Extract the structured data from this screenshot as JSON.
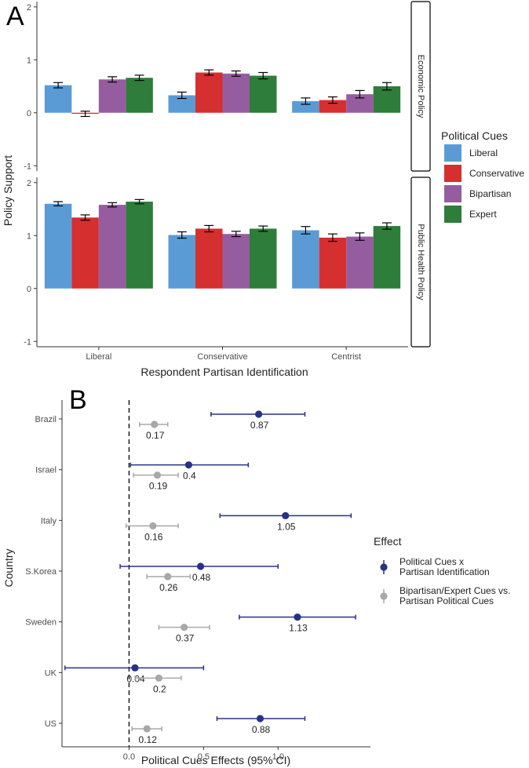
{
  "colors": {
    "liberal": "#5b9bd5",
    "conservative": "#d62f2f",
    "bipartisan": "#955d9f",
    "expert": "#2e7d3a",
    "interaction": "#27318a",
    "cue_contrast": "#a8a8a8"
  },
  "chart_data": [
    {
      "id": "A",
      "panel_label": "A",
      "type": "bar",
      "categories": [
        "Liberal",
        "Conservative",
        "Centrist"
      ],
      "xlabel": "Respondent Partisan Identification",
      "ylabel": "Policy Support",
      "ylim": [
        -1.1,
        2.1
      ],
      "yticks": [
        -1,
        0,
        1,
        2
      ],
      "legend": {
        "title": "Political Cues",
        "position": "right",
        "entries": [
          "Liberal",
          "Conservative",
          "Bipartisan",
          "Expert"
        ]
      },
      "facets": [
        {
          "label": "Economic Policy",
          "series": [
            {
              "name": "Liberal",
              "values": [
                0.52,
                0.33,
                0.22
              ],
              "errors": [
                0.05,
                0.06,
                0.06
              ]
            },
            {
              "name": "Conservative",
              "values": [
                -0.02,
                0.76,
                0.24
              ],
              "errors": [
                0.05,
                0.05,
                0.06
              ]
            },
            {
              "name": "Bipartisan",
              "values": [
                0.63,
                0.74,
                0.35
              ],
              "errors": [
                0.05,
                0.05,
                0.07
              ]
            },
            {
              "name": "Expert",
              "values": [
                0.66,
                0.7,
                0.5
              ],
              "errors": [
                0.05,
                0.06,
                0.07
              ]
            }
          ]
        },
        {
          "label": "Public Health Policy",
          "series": [
            {
              "name": "Liberal",
              "values": [
                1.6,
                1.01,
                1.1
              ],
              "errors": [
                0.04,
                0.06,
                0.07
              ]
            },
            {
              "name": "Conservative",
              "values": [
                1.34,
                1.13,
                0.96
              ],
              "errors": [
                0.05,
                0.06,
                0.07
              ]
            },
            {
              "name": "Bipartisan",
              "values": [
                1.58,
                1.03,
                0.98
              ],
              "errors": [
                0.04,
                0.05,
                0.07
              ]
            },
            {
              "name": "Expert",
              "values": [
                1.64,
                1.13,
                1.18
              ],
              "errors": [
                0.04,
                0.05,
                0.06
              ]
            }
          ]
        }
      ]
    },
    {
      "id": "B",
      "panel_label": "B",
      "type": "scatter",
      "xlabel": "Political Cues Effects (95% CI)",
      "ylabel": "Country",
      "xlim": [
        -0.45,
        1.62
      ],
      "xticks": [
        0.0,
        0.5,
        1.0
      ],
      "xtick_labels": [
        "0.0",
        "0.5",
        "1.0"
      ],
      "reference_line": 0,
      "countries": [
        "Brazil",
        "Israel",
        "Italy",
        "S.Korea",
        "Sweden",
        "UK",
        "US"
      ],
      "legend": {
        "title": "Effect",
        "position": "right",
        "entries": [
          [
            "Political Cues x",
            "Partisan Identification"
          ],
          [
            "Bipartisan/Expert Cues vs.",
            "Partisan Political Cues"
          ]
        ]
      },
      "series": [
        {
          "name": "Political Cues x Partisan Identification",
          "values": [
            0.87,
            0.4,
            1.05,
            0.48,
            1.13,
            0.04,
            0.88
          ],
          "labels": [
            "0.87",
            "0.4",
            "1.05",
            "0.48",
            "1.13",
            "0.04",
            "0.88"
          ],
          "ci_low": [
            0.55,
            0.01,
            0.61,
            -0.06,
            0.74,
            -0.43,
            0.59
          ],
          "ci_high": [
            1.18,
            0.8,
            1.49,
            1.0,
            1.52,
            0.5,
            1.18
          ]
        },
        {
          "name": "Bipartisan/Expert Cues vs. Partisan Political Cues",
          "values": [
            0.17,
            0.19,
            0.16,
            0.26,
            0.37,
            0.2,
            0.12
          ],
          "labels": [
            "0.17",
            "0.19",
            "0.16",
            "0.26",
            "0.37",
            "0.2",
            "0.12"
          ],
          "ci_low": [
            0.07,
            0.03,
            -0.02,
            0.12,
            0.2,
            0.04,
            0.02
          ],
          "ci_high": [
            0.26,
            0.33,
            0.33,
            0.41,
            0.54,
            0.35,
            0.22
          ]
        }
      ]
    }
  ]
}
